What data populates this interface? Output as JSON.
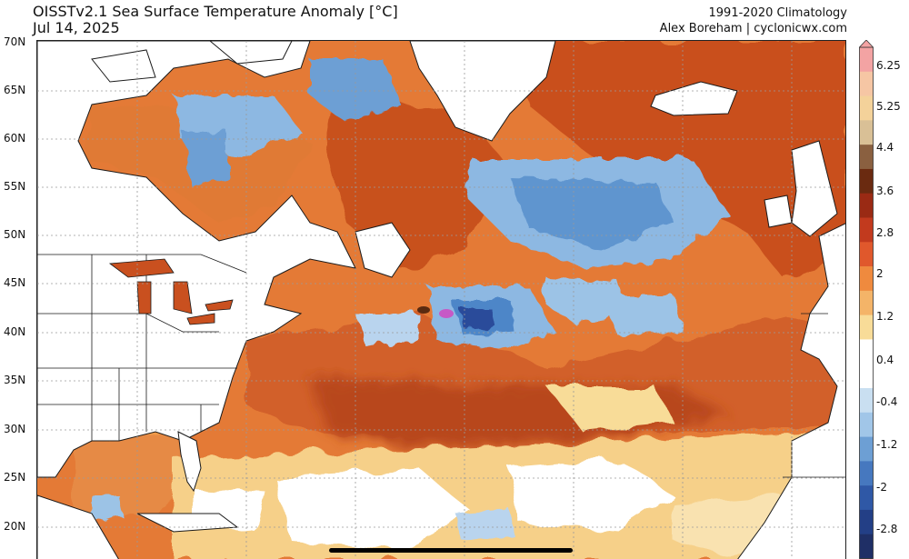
{
  "header": {
    "title": "OISSTv2.1 Sea Surface Temperature Anomaly [°C]",
    "date": "Jul 14, 2025",
    "climatology": "1991-2020 Climatology",
    "credit": "Alex Boreham | cyclonicwx.com"
  },
  "map": {
    "lat_labels": [
      "70N",
      "65N",
      "60N",
      "55N",
      "50N",
      "45N",
      "40N",
      "35N",
      "30N",
      "25N",
      "20N"
    ],
    "colors": {
      "land": "#ffffff",
      "coast": "#1a1a1a",
      "grid": "#9a9a9a",
      "strong_warm": "#b8461f",
      "warm": "#d96a2a",
      "mild_warm": "#ef9a4a",
      "slight_warm": "#f6d089",
      "neutral": "#ffffff",
      "cool": "#9cc3e6",
      "cold": "#4e86c8",
      "very_cold": "#2a4c9a",
      "extreme": "#c659c6"
    }
  },
  "colorbar": {
    "labels": [
      "6.25",
      "5.25",
      "4.4",
      "3.6",
      "2.8",
      "2",
      "1.2",
      "0.4",
      "-0.4",
      "-1.2",
      "-2",
      "-2.8"
    ],
    "stops": [
      "#f3a3a3",
      "#f6c6a4",
      "#f4d29a",
      "#d9c096",
      "#8a6040",
      "#6a2a10",
      "#9a2a14",
      "#c23a1e",
      "#e0582c",
      "#ef8a3e",
      "#f4b468",
      "#f8dc98",
      "#ffffff",
      "#ffffff",
      "#c9dff1",
      "#a1c6e8",
      "#6d9fd4",
      "#4678bf",
      "#2f58a6",
      "#233f86",
      "#1f2f66"
    ]
  }
}
